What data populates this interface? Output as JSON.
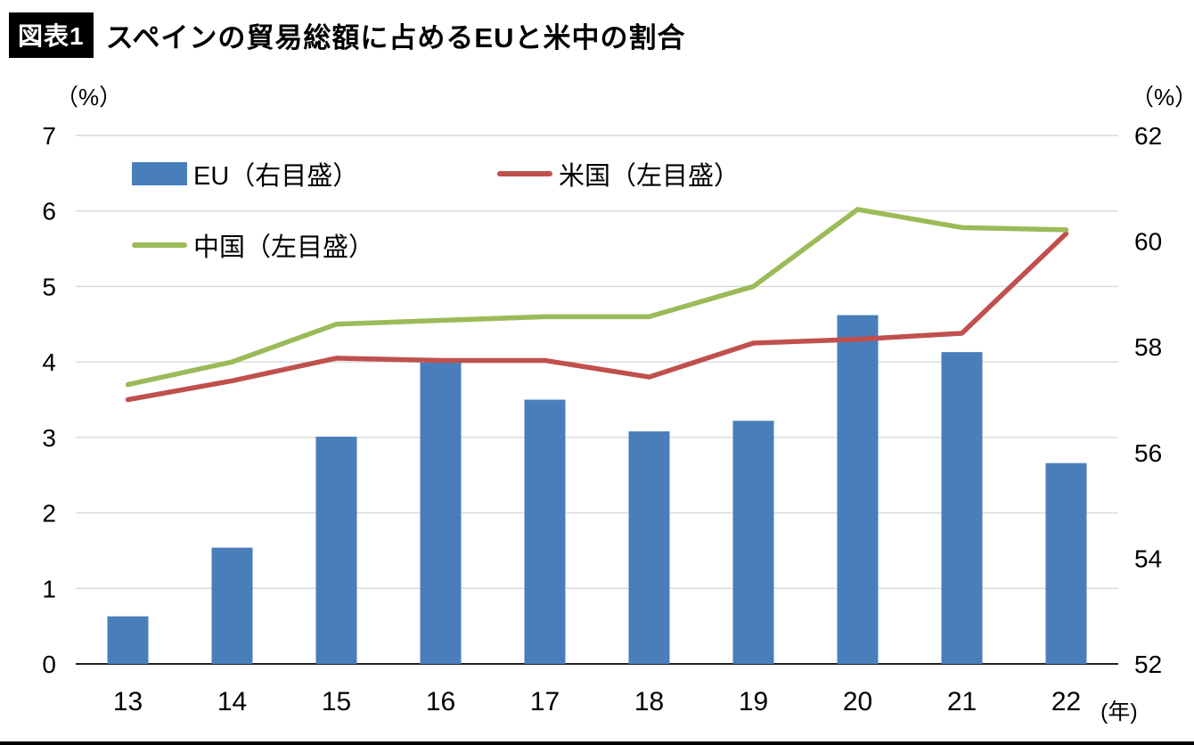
{
  "header": {
    "badge": "図表1",
    "title": "スペインの貿易総額に占めるEUと米中の割合"
  },
  "axes": {
    "left_unit": "（%）",
    "right_unit": "（%）",
    "x_unit": "(年)",
    "left_ticks": [
      7,
      6,
      5,
      4,
      3,
      2,
      1,
      0
    ],
    "right_ticks": [
      62,
      60,
      58,
      56,
      54,
      52
    ]
  },
  "legend": [
    {
      "label": "EU（右目盛）",
      "type": "bar",
      "color": "#4a7ebb"
    },
    {
      "label": "米国（左目盛）",
      "type": "line",
      "color": "#c0504d"
    },
    {
      "label": "中国（左目盛）",
      "type": "line",
      "color": "#9bbb59"
    }
  ],
  "colors": {
    "eu_bar": "#4a7ebb",
    "us_line": "#c0504d",
    "china_line": "#9bbb59",
    "gridline": "#d9d9d9",
    "axis_line": "#000000"
  },
  "chart_data": {
    "type": "bar+line combo",
    "title": "スペインの貿易総額に占めるEUと米中の割合",
    "categories": [
      "13",
      "14",
      "15",
      "16",
      "17",
      "18",
      "19",
      "20",
      "21",
      "22"
    ],
    "series": [
      {
        "name": "EU（右目盛）",
        "key": "eu",
        "type": "bar",
        "axis": "right",
        "color": "#4a7ebb",
        "values": [
          52.9,
          54.2,
          56.3,
          57.7,
          57.0,
          56.4,
          56.6,
          58.6,
          57.9,
          55.8
        ]
      },
      {
        "name": "米国（左目盛）",
        "key": "us",
        "type": "line",
        "axis": "left",
        "color": "#c0504d",
        "values": [
          3.5,
          3.75,
          4.05,
          4.02,
          4.02,
          3.8,
          4.25,
          4.3,
          4.38,
          5.7
        ]
      },
      {
        "name": "中国（左目盛）",
        "key": "china",
        "type": "line",
        "axis": "left",
        "color": "#9bbb59",
        "values": [
          3.7,
          4.0,
          4.5,
          4.55,
          4.6,
          4.6,
          5.0,
          6.02,
          5.78,
          5.75
        ]
      }
    ],
    "left_ylim": [
      0,
      7
    ],
    "right_ylim": [
      52,
      62
    ],
    "xlabel": "年",
    "ylabel_left": "%",
    "ylabel_right": "%",
    "grid": true,
    "legend_position": "top-left-inside"
  }
}
